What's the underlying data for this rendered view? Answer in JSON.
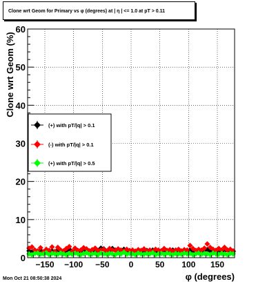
{
  "title": "Clone wrt Geom for Primary vs φ (degrees) at |  η | <= 1.0 at pT > 0.11",
  "timestamp": "Mon Oct 21 08:50:38 2024",
  "chart_data": {
    "type": "scatter",
    "xlabel": "φ (degrees)",
    "ylabel": "Clone wrt Geom (%)",
    "xlim": [
      -180,
      180
    ],
    "ylim": [
      0,
      60
    ],
    "grid": true,
    "legend_placement": "left",
    "x_ticks": [
      "−150",
      "−100",
      "−50",
      "0",
      "50",
      "100",
      "150"
    ],
    "x_tick_values": [
      -150,
      -100,
      -50,
      0,
      50,
      100,
      150
    ],
    "y_ticks": [
      "0",
      "10",
      "20",
      "30",
      "40",
      "50",
      "60"
    ],
    "y_tick_values": [
      0,
      10,
      20,
      30,
      40,
      50,
      60
    ],
    "x": [
      -177.5,
      -172.5,
      -167.5,
      -162.5,
      -157.5,
      -152.5,
      -147.5,
      -142.5,
      -137.5,
      -132.5,
      -127.5,
      -122.5,
      -117.5,
      -112.5,
      -107.5,
      -102.5,
      -97.5,
      -92.5,
      -87.5,
      -82.5,
      -77.5,
      -72.5,
      -67.5,
      -62.5,
      -57.5,
      -52.5,
      -47.5,
      -42.5,
      -37.5,
      -32.5,
      -27.5,
      -22.5,
      -17.5,
      -12.5,
      -7.5,
      -2.5,
      2.5,
      7.5,
      12.5,
      17.5,
      22.5,
      27.5,
      32.5,
      37.5,
      42.5,
      47.5,
      52.5,
      57.5,
      62.5,
      67.5,
      72.5,
      77.5,
      82.5,
      87.5,
      92.5,
      97.5,
      102.5,
      107.5,
      112.5,
      117.5,
      122.5,
      127.5,
      132.5,
      137.5,
      142.5,
      147.5,
      152.5,
      157.5,
      162.5,
      167.5,
      172.5,
      177.5
    ],
    "series": [
      {
        "name": "(+) with pT/|q| > 0.1",
        "color": "#000000",
        "values": [
          1.8,
          1.5,
          2.0,
          1.6,
          1.9,
          1.5,
          2.1,
          1.7,
          1.8,
          1.6,
          2.0,
          1.7,
          1.5,
          1.9,
          2.2,
          1.6,
          1.8,
          1.7,
          1.5,
          2.0,
          1.9,
          1.6,
          1.8,
          2.1,
          1.7,
          2.5,
          2.3,
          1.6,
          1.9,
          2.4,
          2.0,
          1.8,
          1.7,
          2.2,
          1.9,
          1.6,
          1.8,
          1.7,
          2.0,
          1.5,
          1.8,
          1.9,
          1.6,
          2.0,
          1.7,
          1.5,
          1.8,
          1.9,
          1.6,
          1.7,
          2.0,
          1.5,
          1.8,
          1.6,
          1.9,
          1.7,
          2.0,
          1.8,
          1.6,
          1.9,
          1.7,
          2.0,
          2.1,
          1.8,
          1.6,
          1.9,
          1.7,
          1.5,
          1.8,
          2.0,
          1.7,
          1.6
        ]
      },
      {
        "name": "(-) with pT/|q| > 0.1",
        "color": "#ff0000",
        "values": [
          2.5,
          2.8,
          2.0,
          1.8,
          2.6,
          1.5,
          2.2,
          1.9,
          2.8,
          1.6,
          2.7,
          2.0,
          1.8,
          2.4,
          2.9,
          1.7,
          2.5,
          1.9,
          2.0,
          2.6,
          2.3,
          1.8,
          2.1,
          2.5,
          1.9,
          2.0,
          2.2,
          1.7,
          2.4,
          2.0,
          1.9,
          2.3,
          2.0,
          1.8,
          2.2,
          1.9,
          2.0,
          1.7,
          2.1,
          1.9,
          2.3,
          1.8,
          2.0,
          1.6,
          2.2,
          2.0,
          1.8,
          2.4,
          1.9,
          2.1,
          1.7,
          2.0,
          2.2,
          1.8,
          2.1,
          2.0,
          3.2,
          2.4,
          1.9,
          2.2,
          2.0,
          2.5,
          3.6,
          2.7,
          2.2,
          1.9,
          2.4,
          2.0,
          2.7,
          2.0,
          2.2,
          1.8
        ]
      },
      {
        "name": "(+) with pT/|q| > 0.5",
        "color": "#00ff00",
        "values": [
          1.0,
          0.8,
          1.1,
          1.2,
          0.9,
          1.0,
          1.3,
          0.8,
          1.1,
          1.0,
          0.9,
          1.2,
          1.0,
          0.8,
          1.1,
          0.9,
          1.2,
          1.0,
          0.8,
          1.1,
          1.3,
          0.9,
          1.0,
          1.1,
          0.8,
          1.2,
          1.0,
          0.9,
          1.1,
          1.0,
          0.8,
          1.2,
          1.0,
          1.4,
          0.9,
          1.1,
          1.0,
          0.8,
          1.2,
          1.0,
          0.9,
          1.1,
          1.0,
          1.3,
          0.8,
          1.0,
          1.1,
          0.9,
          1.2,
          1.0,
          0.8,
          1.1,
          1.0,
          0.9,
          1.2,
          1.0,
          1.1,
          0.8,
          1.0,
          1.2,
          0.9,
          1.1,
          1.0,
          0.8,
          1.2,
          1.0,
          0.9,
          1.1,
          1.0,
          0.8,
          1.1,
          1.0
        ]
      }
    ]
  }
}
